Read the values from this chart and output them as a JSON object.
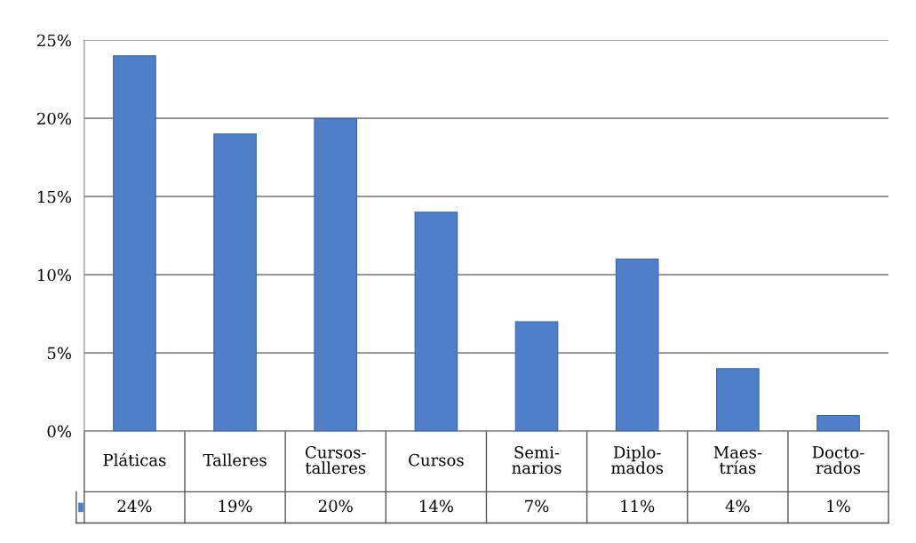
{
  "chart_data": {
    "type": "bar",
    "categories": [
      "Pláticas",
      "Talleres",
      "Cursos-\ntalleres",
      "Cursos",
      "Semi-\nnarios",
      "Diplo-\nmados",
      "Maes-\ntrías",
      "Docto-\nrados"
    ],
    "values": [
      24,
      19,
      20,
      14,
      7,
      11,
      4,
      1
    ],
    "color": "#4f7fc9",
    "value_labels": [
      "24%",
      "19%",
      "20%",
      "14%",
      "7%",
      "11%",
      "4%",
      "1%"
    ],
    "ylim": [
      0,
      25
    ],
    "yticks": [
      {
        "value": 0,
        "label": "0%"
      },
      {
        "value": 5,
        "label": "5%"
      },
      {
        "value": 10,
        "label": "10%"
      },
      {
        "value": 15,
        "label": "15%"
      },
      {
        "value": 20,
        "label": "20%"
      },
      {
        "value": 25,
        "label": "25%"
      }
    ],
    "grid": "y"
  }
}
